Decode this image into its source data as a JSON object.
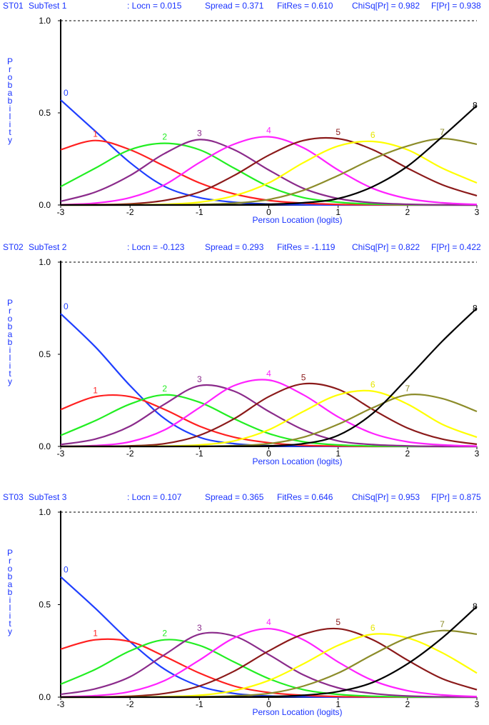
{
  "chart_data": [
    {
      "type": "line",
      "header": {
        "id": "ST01",
        "name": "SubTest 1",
        "locn": ": Locn = 0.015",
        "spread": "Spread = 0.371",
        "fitres": "FitRes = 0.610",
        "chisq": "ChiSq[Pr] = 0.982",
        "fpr": "F[Pr] = 0.938"
      },
      "xlabel": "Person Location (logits)",
      "ylabel": "Probability",
      "xlim": [
        -3,
        3
      ],
      "ylim": [
        0,
        1
      ],
      "x_ticks": [
        "-3",
        "-2",
        "-1",
        "0",
        "1",
        "2",
        "3"
      ],
      "y_ticks": [
        "0.0",
        "0.5",
        "1.0"
      ],
      "x": [
        -3.0,
        -2.5,
        -2.0,
        -1.5,
        -1.0,
        -0.5,
        0.0,
        0.5,
        1.0,
        1.5,
        2.0,
        2.5,
        3.0
      ],
      "series": [
        {
          "name": "0",
          "color": "#1f3fff",
          "values": [
            0.57,
            0.4,
            0.23,
            0.1,
            0.04,
            0.015,
            0.005,
            0.001,
            0,
            0,
            0,
            0,
            0
          ]
        },
        {
          "name": "1",
          "color": "#ff2020",
          "values": [
            0.3,
            0.35,
            0.3,
            0.21,
            0.12,
            0.06,
            0.025,
            0.01,
            0.003,
            0.001,
            0,
            0,
            0
          ]
        },
        {
          "name": "2",
          "color": "#22ee22",
          "values": [
            0.1,
            0.2,
            0.3,
            0.335,
            0.3,
            0.2,
            0.1,
            0.04,
            0.015,
            0.005,
            0.001,
            0,
            0
          ]
        },
        {
          "name": "3",
          "color": "#8b2b8b",
          "values": [
            0.02,
            0.07,
            0.16,
            0.28,
            0.355,
            0.3,
            0.19,
            0.09,
            0.035,
            0.012,
            0.004,
            0.001,
            0
          ]
        },
        {
          "name": "4",
          "color": "#ff22ff",
          "values": [
            0.002,
            0.01,
            0.04,
            0.11,
            0.23,
            0.33,
            0.37,
            0.31,
            0.19,
            0.09,
            0.035,
            0.012,
            0.003
          ]
        },
        {
          "name": "5",
          "color": "#8b1a1a",
          "values": [
            0,
            0.002,
            0.006,
            0.025,
            0.07,
            0.16,
            0.27,
            0.35,
            0.36,
            0.3,
            0.2,
            0.11,
            0.05
          ]
        },
        {
          "name": "6",
          "color": "#ffff00",
          "values": [
            0,
            0,
            0.001,
            0.004,
            0.015,
            0.05,
            0.12,
            0.23,
            0.32,
            0.345,
            0.3,
            0.2,
            0.12
          ]
        },
        {
          "name": "7",
          "color": "#8c8c2a",
          "values": [
            0,
            0,
            0,
            0.001,
            0.003,
            0.01,
            0.03,
            0.08,
            0.16,
            0.25,
            0.32,
            0.36,
            0.33
          ]
        },
        {
          "name": "8",
          "color": "#000000",
          "values": [
            0,
            0,
            0,
            0,
            0,
            0.001,
            0.004,
            0.012,
            0.035,
            0.1,
            0.21,
            0.37,
            0.54
          ]
        }
      ],
      "grid": false
    },
    {
      "type": "line",
      "header": {
        "id": "ST02",
        "name": "SubTest 2",
        "locn": ": Locn = -0.123",
        "spread": "Spread = 0.293",
        "fitres": "FitRes = -1.119",
        "chisq": "ChiSq[Pr] = 0.822",
        "fpr": "F[Pr] = 0.422"
      },
      "xlabel": "Person Location (logits)",
      "ylabel": "Probability",
      "xlim": [
        -3,
        3
      ],
      "ylim": [
        0,
        1
      ],
      "x_ticks": [
        "-3",
        "-2",
        "-1",
        "0",
        "1",
        "2",
        "3"
      ],
      "y_ticks": [
        "0.0",
        "0.5",
        "1.0"
      ],
      "x": [
        -3.0,
        -2.5,
        -2.0,
        -1.5,
        -1.0,
        -0.5,
        0.0,
        0.5,
        1.0,
        1.5,
        2.0,
        2.5,
        3.0
      ],
      "series": [
        {
          "name": "0",
          "color": "#1f3fff",
          "values": [
            0.72,
            0.54,
            0.33,
            0.15,
            0.05,
            0.015,
            0.004,
            0.001,
            0,
            0,
            0,
            0,
            0
          ]
        },
        {
          "name": "1",
          "color": "#ff2020",
          "values": [
            0.2,
            0.27,
            0.27,
            0.2,
            0.11,
            0.05,
            0.02,
            0.006,
            0.002,
            0,
            0,
            0,
            0
          ]
        },
        {
          "name": "2",
          "color": "#22ee22",
          "values": [
            0.06,
            0.14,
            0.23,
            0.28,
            0.24,
            0.15,
            0.07,
            0.025,
            0.008,
            0.002,
            0,
            0,
            0
          ]
        },
        {
          "name": "3",
          "color": "#8b2b8b",
          "values": [
            0.01,
            0.04,
            0.11,
            0.23,
            0.33,
            0.3,
            0.19,
            0.09,
            0.03,
            0.01,
            0.003,
            0,
            0
          ]
        },
        {
          "name": "4",
          "color": "#ff22ff",
          "values": [
            0.001,
            0.005,
            0.025,
            0.09,
            0.21,
            0.33,
            0.36,
            0.28,
            0.16,
            0.07,
            0.025,
            0.008,
            0.002
          ]
        },
        {
          "name": "5",
          "color": "#8b1a1a",
          "values": [
            0,
            0.001,
            0.003,
            0.015,
            0.06,
            0.15,
            0.27,
            0.34,
            0.31,
            0.2,
            0.1,
            0.04,
            0.012
          ]
        },
        {
          "name": "6",
          "color": "#ffff00",
          "values": [
            0,
            0,
            0,
            0.002,
            0.008,
            0.03,
            0.09,
            0.19,
            0.28,
            0.3,
            0.23,
            0.12,
            0.05
          ]
        },
        {
          "name": "7",
          "color": "#8c8c2a",
          "values": [
            0,
            0,
            0,
            0,
            0.001,
            0.004,
            0.015,
            0.05,
            0.12,
            0.21,
            0.28,
            0.26,
            0.19
          ]
        },
        {
          "name": "8",
          "color": "#000000",
          "values": [
            0,
            0,
            0,
            0,
            0,
            0.001,
            0.003,
            0.015,
            0.06,
            0.18,
            0.37,
            0.57,
            0.75
          ]
        }
      ],
      "grid": false
    },
    {
      "type": "line",
      "header": {
        "id": "ST03",
        "name": "SubTest 3",
        "locn": ": Locn = 0.107",
        "spread": "Spread = 0.365",
        "fitres": "FitRes = 0.646",
        "chisq": "ChiSq[Pr] = 0.953",
        "fpr": "F[Pr] = 0.875"
      },
      "xlabel": "Person Location (logits)",
      "ylabel": "Probability",
      "xlim": [
        -3,
        3
      ],
      "ylim": [
        0,
        1
      ],
      "x_ticks": [
        "-3",
        "-2",
        "-1",
        "0",
        "1",
        "2",
        "3"
      ],
      "y_ticks": [
        "0.0",
        "0.5",
        "1.0"
      ],
      "x": [
        -3.0,
        -2.5,
        -2.0,
        -1.5,
        -1.0,
        -0.5,
        0.0,
        0.5,
        1.0,
        1.5,
        2.0,
        2.5,
        3.0
      ],
      "series": [
        {
          "name": "0",
          "color": "#1f3fff",
          "values": [
            0.65,
            0.48,
            0.3,
            0.15,
            0.06,
            0.02,
            0.006,
            0.002,
            0,
            0,
            0,
            0,
            0
          ]
        },
        {
          "name": "1",
          "color": "#ff2020",
          "values": [
            0.26,
            0.31,
            0.3,
            0.22,
            0.13,
            0.06,
            0.025,
            0.01,
            0.003,
            0.001,
            0,
            0,
            0
          ]
        },
        {
          "name": "2",
          "color": "#22ee22",
          "values": [
            0.07,
            0.15,
            0.25,
            0.31,
            0.28,
            0.19,
            0.1,
            0.04,
            0.015,
            0.005,
            0.001,
            0,
            0
          ]
        },
        {
          "name": "3",
          "color": "#8b2b8b",
          "values": [
            0.015,
            0.045,
            0.11,
            0.23,
            0.34,
            0.33,
            0.23,
            0.12,
            0.05,
            0.02,
            0.006,
            0.002,
            0
          ]
        },
        {
          "name": "4",
          "color": "#ff22ff",
          "values": [
            0.002,
            0.008,
            0.03,
            0.09,
            0.2,
            0.32,
            0.37,
            0.31,
            0.19,
            0.09,
            0.035,
            0.012,
            0.003
          ]
        },
        {
          "name": "5",
          "color": "#8b1a1a",
          "values": [
            0,
            0.001,
            0.005,
            0.02,
            0.06,
            0.14,
            0.25,
            0.34,
            0.37,
            0.31,
            0.2,
            0.1,
            0.04
          ]
        },
        {
          "name": "6",
          "color": "#ffff00",
          "values": [
            0,
            0,
            0.001,
            0.003,
            0.01,
            0.035,
            0.09,
            0.18,
            0.28,
            0.34,
            0.32,
            0.24,
            0.13
          ]
        },
        {
          "name": "7",
          "color": "#8c8c2a",
          "values": [
            0,
            0,
            0,
            0.001,
            0.002,
            0.007,
            0.02,
            0.06,
            0.13,
            0.23,
            0.32,
            0.36,
            0.34
          ]
        },
        {
          "name": "8",
          "color": "#000000",
          "values": [
            0,
            0,
            0,
            0,
            0,
            0.001,
            0.003,
            0.01,
            0.03,
            0.08,
            0.18,
            0.32,
            0.49
          ]
        }
      ],
      "grid": false
    }
  ]
}
